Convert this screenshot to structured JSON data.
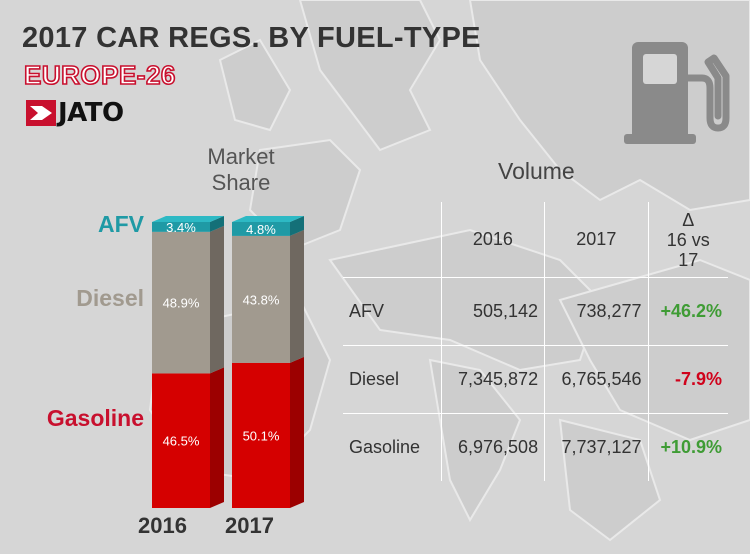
{
  "title": "2017 CAR REGS. BY FUEL-TYPE",
  "subtitle": "EUROPE-26",
  "logo_text": "JATO",
  "icons": {
    "fuel_pump": "fuel-pump-icon",
    "logo": "jato-logo-icon"
  },
  "colors": {
    "afv": "#1f9aa5",
    "diesel": "#a19a8f",
    "gasoline": "#d50000",
    "positive": "#3f9c35",
    "negative": "#d0021b",
    "title": "#333333",
    "brand_red": "#c8102e"
  },
  "market_share_heading": [
    "Market",
    "Share"
  ],
  "volume_heading": "Volume",
  "chart_data": {
    "type": "bar",
    "stacked": true,
    "title": "Market Share",
    "categories": [
      "2016",
      "2017"
    ],
    "series": [
      {
        "name": "Gasoline",
        "values": [
          46.5,
          50.1
        ],
        "labels": [
          "46.5%",
          "50.1%"
        ]
      },
      {
        "name": "Diesel",
        "values": [
          48.9,
          43.8
        ],
        "labels": [
          "48.9%",
          "43.8%"
        ]
      },
      {
        "name": "AFV",
        "values": [
          3.4,
          4.8
        ],
        "labels": [
          "3.4%",
          "4.8%"
        ]
      }
    ],
    "ylim": [
      0,
      100
    ],
    "grid": false
  },
  "table": {
    "headers": {
      "year1": "2016",
      "year2": "2017",
      "delta_symbol": "Δ",
      "delta_label": "16 vs 17"
    },
    "rows": [
      {
        "name": "AFV",
        "v2016": "505,142",
        "v2017": "738,277",
        "delta": "+46.2%",
        "trend": "positive"
      },
      {
        "name": "Diesel",
        "v2016": "7,345,872",
        "v2017": "6,765,546",
        "delta": "-7.9%",
        "trend": "negative"
      },
      {
        "name": "Gasoline",
        "v2016": "6,976,508",
        "v2017": "7,737,127",
        "delta": "+10.9%",
        "trend": "positive"
      }
    ]
  }
}
